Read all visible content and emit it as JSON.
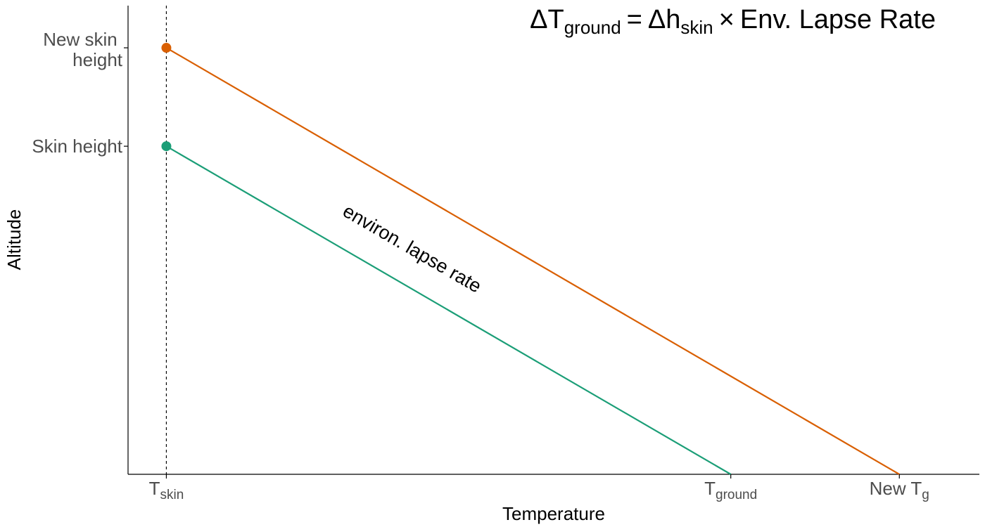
{
  "chart_data": {
    "type": "line",
    "title": "",
    "xlabel": "Temperature",
    "ylabel": "Altitude",
    "xlim": [
      0,
      100
    ],
    "ylim": [
      0,
      100
    ],
    "grid": false,
    "legend": "none",
    "equation": {
      "delta": "Δ",
      "t_main": "T",
      "t_sub": "ground",
      "equals": "=",
      "h_main": "h",
      "h_sub": "skin",
      "times": "×",
      "rest": "Env. Lapse Rate"
    },
    "x_ticks": [
      {
        "value": 4.5,
        "main": "T",
        "sub": "skin"
      },
      {
        "value": 70.8,
        "main": "T",
        "sub": "ground"
      },
      {
        "value": 90.6,
        "main": "New T",
        "sub": "g"
      }
    ],
    "y_ticks": [
      {
        "value": 70,
        "lines": [
          "Skin height"
        ]
      },
      {
        "value": 91,
        "lines": [
          "New skin",
          "height"
        ]
      }
    ],
    "reference_line": {
      "x": 4.5,
      "style": "dashed",
      "color": "#000000"
    },
    "series": [
      {
        "x": [
          4.5,
          70.8
        ],
        "y": [
          70,
          0
        ],
        "color": "#1b9e77",
        "marker_at_start": true
      },
      {
        "x": [
          4.5,
          90.6
        ],
        "y": [
          91,
          0
        ],
        "color": "#d95f02",
        "marker_at_start": true
      }
    ],
    "annotation": {
      "text": "environ. lapse rate",
      "x": 33,
      "y": 47
    }
  }
}
